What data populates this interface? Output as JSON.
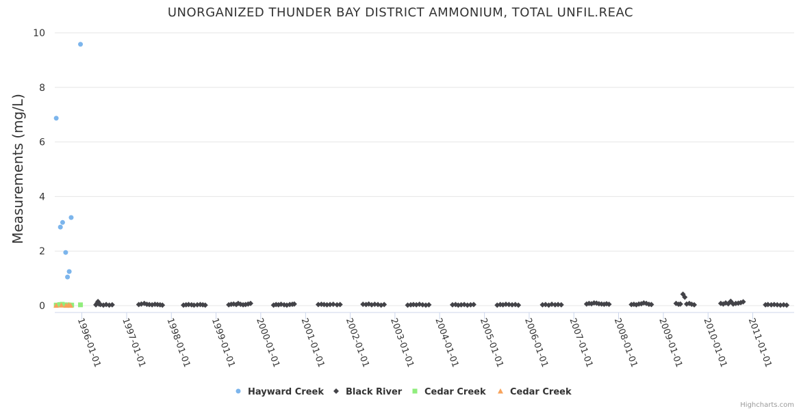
{
  "chart_data": {
    "type": "scatter",
    "title": "UNORGANIZED THUNDER BAY DISTRICT AMMONIUM, TOTAL UNFIL.REAC",
    "xlabel": "",
    "ylabel": "Measurements (mg/L)",
    "x_type": "date",
    "xlim": [
      "1995-05-25",
      "2011-12-05"
    ],
    "ylim": [
      0,
      10
    ],
    "y_ticks": [
      0,
      2,
      4,
      6,
      8,
      10
    ],
    "x_ticks": [
      "1996-01-01",
      "1997-01-01",
      "1998-01-01",
      "1999-01-01",
      "2000-01-01",
      "2001-01-01",
      "2002-01-01",
      "2003-01-01",
      "2004-01-01",
      "2005-01-01",
      "2006-01-01",
      "2007-01-01",
      "2008-01-01",
      "2009-01-01",
      "2010-01-01",
      "2011-01-01"
    ],
    "grid": "horizontal",
    "legend_position": "bottom",
    "series": [
      {
        "name": "Hayward Creek",
        "marker": "circle",
        "color": "#7cb5ec",
        "points": [
          [
            "1995-06-06",
            6.87
          ],
          [
            "1995-07-10",
            2.88
          ],
          [
            "1995-07-28",
            3.05
          ],
          [
            "1995-08-22",
            1.95
          ],
          [
            "1995-09-06",
            1.05
          ],
          [
            "1995-09-20",
            1.25
          ],
          [
            "1995-10-06",
            3.23
          ],
          [
            "1995-12-21",
            9.58
          ]
        ]
      },
      {
        "name": "Black River",
        "marker": "diamond",
        "color": "#434348",
        "points": [
          [
            "1996-04-25",
            0.03
          ],
          [
            "1996-05-05",
            0.09
          ],
          [
            "1996-05-12",
            0.15
          ],
          [
            "1996-05-20",
            0.06
          ],
          [
            "1996-06-01",
            0.04
          ],
          [
            "1996-06-25",
            0.02
          ],
          [
            "1996-07-18",
            0.04
          ],
          [
            "1996-08-12",
            0.02
          ],
          [
            "1996-09-05",
            0.03
          ],
          [
            "1997-04-10",
            0.04
          ],
          [
            "1997-05-01",
            0.06
          ],
          [
            "1997-05-25",
            0.08
          ],
          [
            "1997-06-15",
            0.05
          ],
          [
            "1997-07-05",
            0.04
          ],
          [
            "1997-07-28",
            0.03
          ],
          [
            "1997-08-20",
            0.05
          ],
          [
            "1997-09-10",
            0.04
          ],
          [
            "1997-10-01",
            0.03
          ],
          [
            "1997-10-20",
            0.02
          ],
          [
            "1998-04-10",
            0.02
          ],
          [
            "1998-05-01",
            0.03
          ],
          [
            "1998-05-22",
            0.04
          ],
          [
            "1998-06-15",
            0.03
          ],
          [
            "1998-07-05",
            0.02
          ],
          [
            "1998-08-01",
            0.03
          ],
          [
            "1998-08-25",
            0.04
          ],
          [
            "1998-09-15",
            0.03
          ],
          [
            "1998-10-05",
            0.02
          ],
          [
            "1999-04-15",
            0.03
          ],
          [
            "1999-05-05",
            0.05
          ],
          [
            "1999-05-25",
            0.06
          ],
          [
            "1999-06-15",
            0.04
          ],
          [
            "1999-07-01",
            0.08
          ],
          [
            "1999-07-20",
            0.05
          ],
          [
            "1999-08-10",
            0.03
          ],
          [
            "1999-08-30",
            0.04
          ],
          [
            "1999-09-20",
            0.06
          ],
          [
            "1999-10-10",
            0.08
          ],
          [
            "2000-04-15",
            0.02
          ],
          [
            "2000-05-05",
            0.04
          ],
          [
            "2000-05-25",
            0.03
          ],
          [
            "2000-06-15",
            0.05
          ],
          [
            "2000-07-10",
            0.03
          ],
          [
            "2000-08-01",
            0.02
          ],
          [
            "2000-08-25",
            0.04
          ],
          [
            "2000-09-15",
            0.05
          ],
          [
            "2000-10-01",
            0.06
          ],
          [
            "2001-04-15",
            0.04
          ],
          [
            "2001-05-10",
            0.05
          ],
          [
            "2001-06-01",
            0.04
          ],
          [
            "2001-06-25",
            0.03
          ],
          [
            "2001-07-20",
            0.04
          ],
          [
            "2001-08-15",
            0.05
          ],
          [
            "2001-09-15",
            0.03
          ],
          [
            "2001-10-10",
            0.04
          ],
          [
            "2002-04-15",
            0.05
          ],
          [
            "2002-05-10",
            0.04
          ],
          [
            "2002-06-01",
            0.06
          ],
          [
            "2002-06-25",
            0.03
          ],
          [
            "2002-07-20",
            0.05
          ],
          [
            "2002-08-15",
            0.04
          ],
          [
            "2002-09-10",
            0.02
          ],
          [
            "2002-10-05",
            0.04
          ],
          [
            "2003-04-15",
            0.02
          ],
          [
            "2003-05-10",
            0.03
          ],
          [
            "2003-06-01",
            0.04
          ],
          [
            "2003-06-25",
            0.03
          ],
          [
            "2003-07-20",
            0.05
          ],
          [
            "2003-08-15",
            0.03
          ],
          [
            "2003-09-10",
            0.02
          ],
          [
            "2003-10-05",
            0.03
          ],
          [
            "2004-04-15",
            0.03
          ],
          [
            "2004-05-10",
            0.04
          ],
          [
            "2004-06-01",
            0.02
          ],
          [
            "2004-06-25",
            0.03
          ],
          [
            "2004-07-20",
            0.04
          ],
          [
            "2004-08-15",
            0.02
          ],
          [
            "2004-09-10",
            0.03
          ],
          [
            "2004-10-05",
            0.04
          ],
          [
            "2005-04-15",
            0.02
          ],
          [
            "2005-05-10",
            0.04
          ],
          [
            "2005-06-01",
            0.03
          ],
          [
            "2005-06-25",
            0.05
          ],
          [
            "2005-07-20",
            0.04
          ],
          [
            "2005-08-15",
            0.03
          ],
          [
            "2005-09-10",
            0.04
          ],
          [
            "2005-10-05",
            0.02
          ],
          [
            "2006-04-20",
            0.03
          ],
          [
            "2006-05-15",
            0.04
          ],
          [
            "2006-06-10",
            0.02
          ],
          [
            "2006-07-05",
            0.05
          ],
          [
            "2006-08-01",
            0.03
          ],
          [
            "2006-08-25",
            0.04
          ],
          [
            "2006-09-20",
            0.03
          ],
          [
            "2007-04-15",
            0.06
          ],
          [
            "2007-05-05",
            0.08
          ],
          [
            "2007-05-25",
            0.07
          ],
          [
            "2007-06-15",
            0.1
          ],
          [
            "2007-07-05",
            0.09
          ],
          [
            "2007-07-25",
            0.07
          ],
          [
            "2007-08-15",
            0.06
          ],
          [
            "2007-09-05",
            0.05
          ],
          [
            "2007-09-25",
            0.07
          ],
          [
            "2007-10-15",
            0.05
          ],
          [
            "2008-04-15",
            0.04
          ],
          [
            "2008-05-05",
            0.05
          ],
          [
            "2008-05-25",
            0.03
          ],
          [
            "2008-06-15",
            0.06
          ],
          [
            "2008-07-05",
            0.07
          ],
          [
            "2008-07-25",
            0.1
          ],
          [
            "2008-08-15",
            0.08
          ],
          [
            "2008-09-05",
            0.05
          ],
          [
            "2008-09-25",
            0.04
          ],
          [
            "2009-04-15",
            0.08
          ],
          [
            "2009-05-05",
            0.05
          ],
          [
            "2009-05-20",
            0.06
          ],
          [
            "2009-06-10",
            0.42
          ],
          [
            "2009-06-25",
            0.31
          ],
          [
            "2009-07-10",
            0.06
          ],
          [
            "2009-08-01",
            0.08
          ],
          [
            "2009-08-20",
            0.05
          ],
          [
            "2009-09-10",
            0.03
          ],
          [
            "2010-04-15",
            0.08
          ],
          [
            "2010-05-05",
            0.06
          ],
          [
            "2010-05-25",
            0.1
          ],
          [
            "2010-06-15",
            0.07
          ],
          [
            "2010-07-05",
            0.16
          ],
          [
            "2010-07-25",
            0.06
          ],
          [
            "2010-08-15",
            0.08
          ],
          [
            "2010-09-05",
            0.09
          ],
          [
            "2010-09-25",
            0.11
          ],
          [
            "2010-10-15",
            0.14
          ],
          [
            "2011-04-15",
            0.03
          ],
          [
            "2011-05-05",
            0.04
          ],
          [
            "2011-06-01",
            0.03
          ],
          [
            "2011-06-25",
            0.04
          ],
          [
            "2011-07-20",
            0.03
          ],
          [
            "2011-08-15",
            0.02
          ],
          [
            "2011-09-10",
            0.03
          ],
          [
            "2011-10-05",
            0.02
          ]
        ]
      },
      {
        "name": "Cedar Creek",
        "marker": "square",
        "color": "#90ed7d",
        "points": [
          [
            "1995-06-06",
            0.02
          ],
          [
            "1995-07-05",
            0.04
          ],
          [
            "1995-07-25",
            0.05
          ],
          [
            "1995-08-10",
            0.03
          ],
          [
            "1995-08-25",
            0.02
          ],
          [
            "1995-09-10",
            0.03
          ],
          [
            "1995-09-25",
            0.02
          ],
          [
            "1995-10-10",
            0.02
          ],
          [
            "1995-12-21",
            0.03
          ]
        ]
      },
      {
        "name": "Cedar Creek",
        "marker": "triangle",
        "color": "#f7a35c",
        "points": [
          [
            "1995-06-06",
            0.01
          ],
          [
            "1995-07-18",
            0.02
          ],
          [
            "1995-08-25",
            0.01
          ],
          [
            "1995-09-15",
            0.03
          ],
          [
            "1995-10-01",
            0.01
          ]
        ]
      }
    ]
  },
  "credits": "Highcharts.com"
}
